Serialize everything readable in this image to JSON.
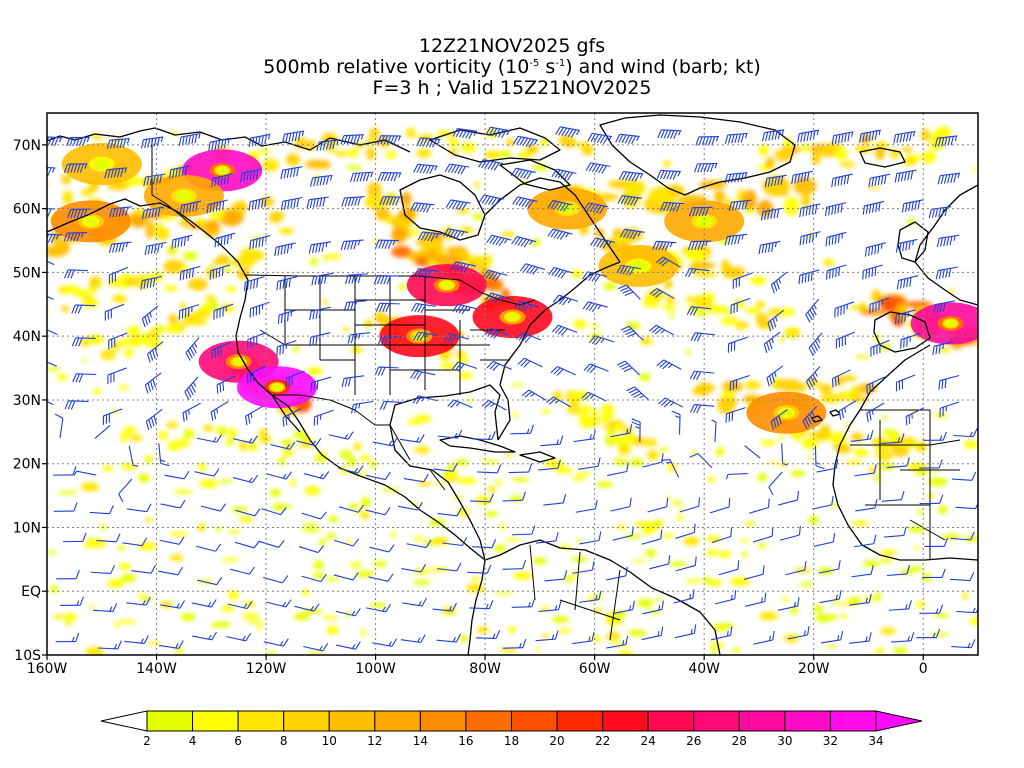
{
  "title": {
    "line1": "12Z21NOV2025 gfs",
    "line2_pre": "500mb relative vorticity (10",
    "line2_exp1": "-5",
    "line2_mid": " s",
    "line2_exp2": "-1",
    "line2_post": ") and wind (barb; kt)",
    "line3": "F=3 h ; Valid 15Z21NOV2025"
  },
  "map": {
    "region_lon": [
      -160,
      10
    ],
    "region_lat": [
      -10,
      75
    ],
    "lat_ticks": [
      {
        "value": 70,
        "label": "70N"
      },
      {
        "value": 60,
        "label": "60N"
      },
      {
        "value": 50,
        "label": "50N"
      },
      {
        "value": 40,
        "label": "40N"
      },
      {
        "value": 30,
        "label": "30N"
      },
      {
        "value": 20,
        "label": "20N"
      },
      {
        "value": 10,
        "label": "10N"
      },
      {
        "value": 0,
        "label": "EQ"
      },
      {
        "value": -10,
        "label": "10S"
      }
    ],
    "lon_ticks": [
      {
        "value": -160,
        "label": "160W"
      },
      {
        "value": -140,
        "label": "140W"
      },
      {
        "value": -120,
        "label": "120W"
      },
      {
        "value": -100,
        "label": "100W"
      },
      {
        "value": -80,
        "label": "80W"
      },
      {
        "value": -60,
        "label": "60W"
      },
      {
        "value": -40,
        "label": "40W"
      },
      {
        "value": -20,
        "label": "20W"
      },
      {
        "value": 0,
        "label": "0"
      }
    ],
    "gridlines": "dotted",
    "barb_color": "#1f3fd8",
    "coast_color": "#000000"
  },
  "colorbar": {
    "levels": [
      2,
      4,
      6,
      8,
      10,
      12,
      14,
      16,
      18,
      20,
      22,
      24,
      26,
      28,
      30,
      32,
      34
    ],
    "labels": [
      "2",
      "4",
      "6",
      "8",
      "10",
      "12",
      "14",
      "16",
      "18",
      "20",
      "22",
      "24",
      "26",
      "28",
      "30",
      "32",
      "34"
    ],
    "colors": [
      "#ffffff",
      "#e5ff00",
      "#ffff00",
      "#ffe600",
      "#ffd200",
      "#ffbe00",
      "#ffa800",
      "#ff8c00",
      "#ff6e00",
      "#ff5000",
      "#ff2a00",
      "#ff0a1e",
      "#ff0a50",
      "#ff0a78",
      "#ff0aa0",
      "#ff0ac8",
      "#ff0aeb",
      "#ff0aff"
    ]
  },
  "vorticity_features": [
    {
      "lon": -150,
      "lat": 67,
      "value": 10
    },
    {
      "lon": -128,
      "lat": 66,
      "value": 30
    },
    {
      "lon": -135,
      "lat": 62,
      "value": 12
    },
    {
      "lon": -152,
      "lat": 58,
      "value": 14
    },
    {
      "lon": -125,
      "lat": 36,
      "value": 26
    },
    {
      "lon": -118,
      "lat": 32,
      "value": 34
    },
    {
      "lon": -87,
      "lat": 48,
      "value": 24
    },
    {
      "lon": -75,
      "lat": 43,
      "value": 22
    },
    {
      "lon": -92,
      "lat": 40,
      "value": 22
    },
    {
      "lon": -65,
      "lat": 60,
      "value": 12
    },
    {
      "lon": -40,
      "lat": 58,
      "value": 12
    },
    {
      "lon": -25,
      "lat": 28,
      "value": 14
    },
    {
      "lon": 5,
      "lat": 42,
      "value": 28
    },
    {
      "lon": -52,
      "lat": 51,
      "value": 10
    }
  ]
}
